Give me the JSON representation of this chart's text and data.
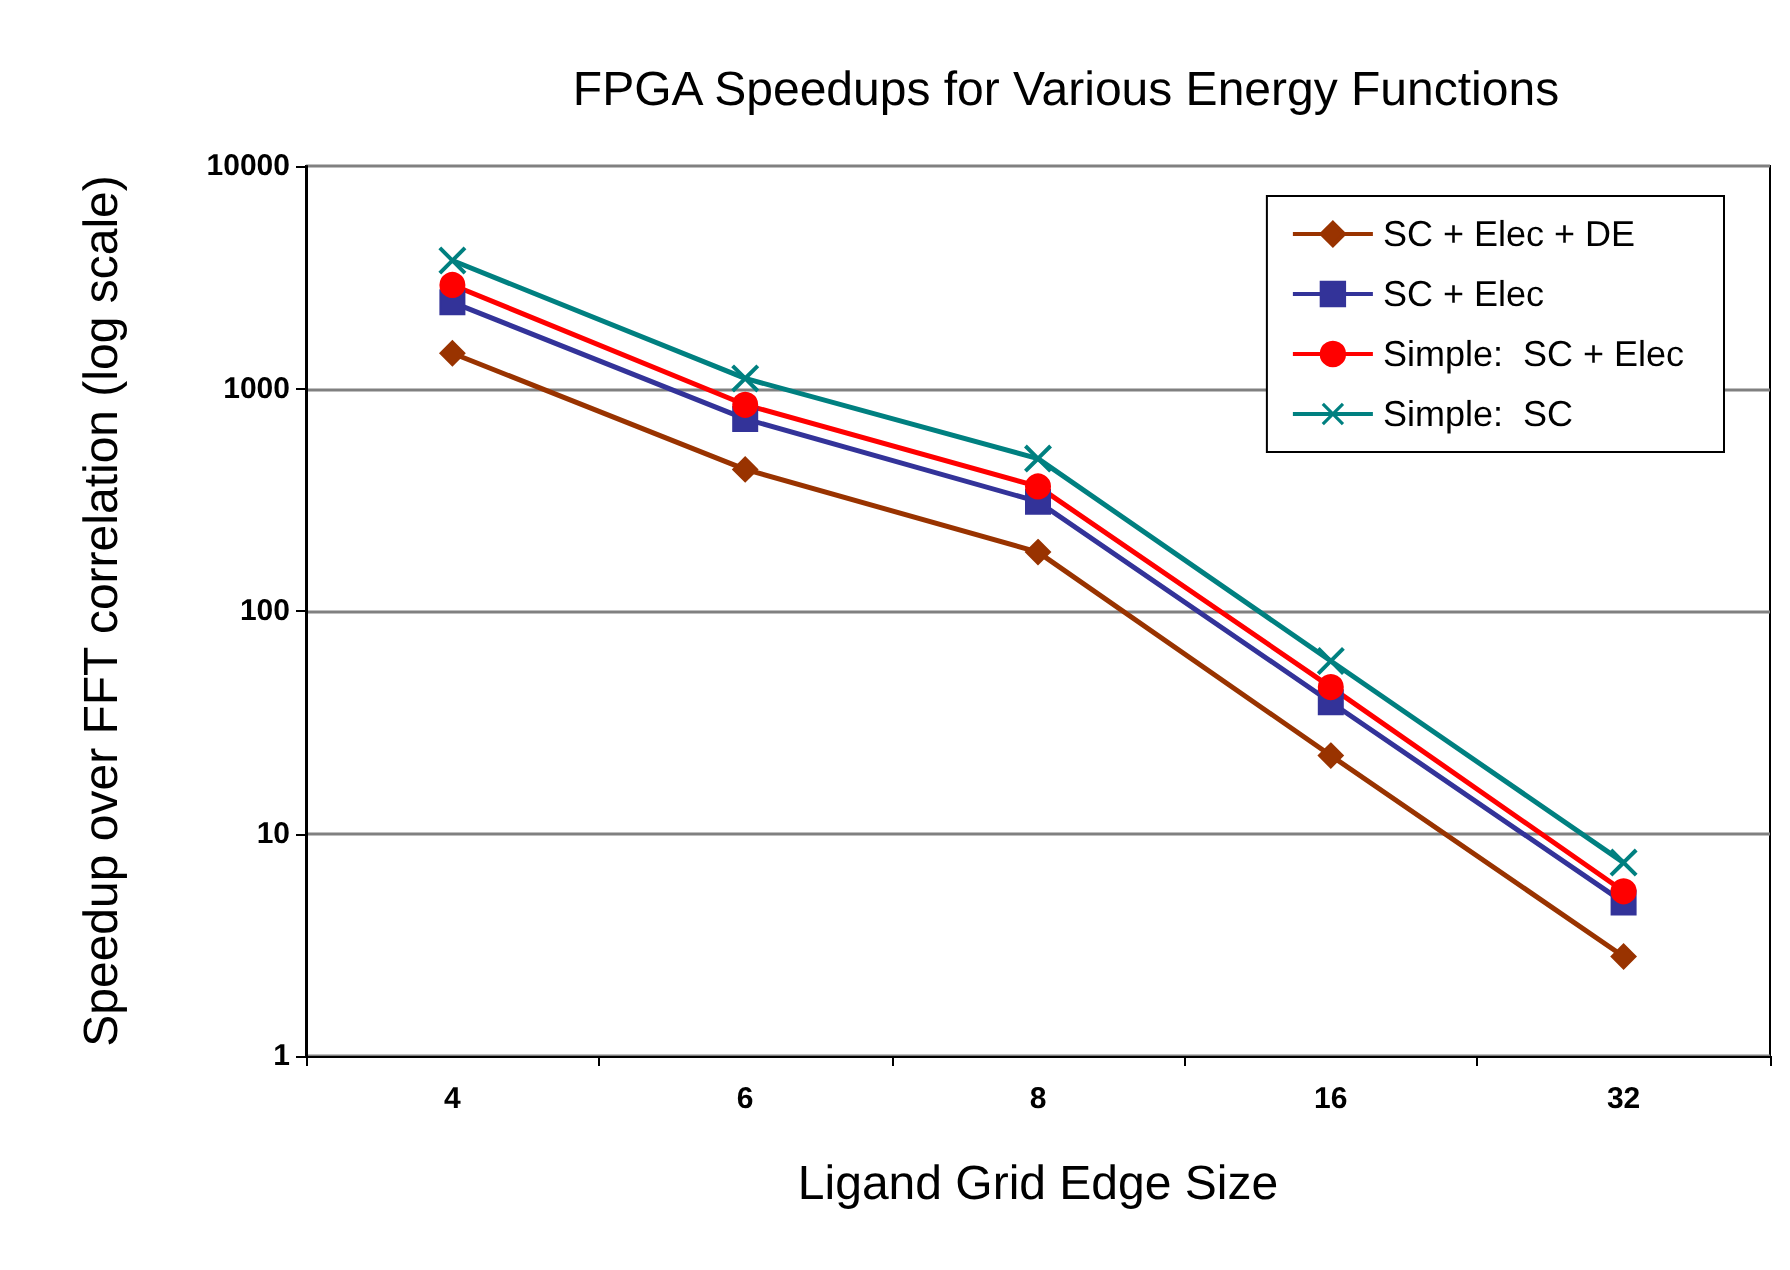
{
  "chart_data": {
    "type": "line",
    "title": "FPGA Speedups for Various Energy Functions",
    "xlabel": "Ligand Grid Edge Size",
    "ylabel": "Speedup over FFT correlation (log scale)",
    "categories": [
      "4",
      "6",
      "8",
      "16",
      "32"
    ],
    "series": [
      {
        "name": "SC + Elec + DE",
        "color": "#993300",
        "marker": "diamond",
        "values": [
          1440,
          433,
          184,
          22.4,
          2.8
        ]
      },
      {
        "name": "SC + Elec",
        "color": "#333399",
        "marker": "square",
        "values": [
          2440,
          730,
          310,
          38.9,
          4.9
        ]
      },
      {
        "name": "Simple:  SC + Elec",
        "color": "#ff0000",
        "marker": "circle",
        "values": [
          2920,
          845,
          363,
          45.5,
          5.5
        ]
      },
      {
        "name": "Simple:  SC",
        "color": "#008080",
        "marker": "cross",
        "values": [
          3760,
          1110,
          484,
          59.6,
          7.4
        ]
      }
    ],
    "log": "y",
    "ylim": [
      1,
      10000
    ],
    "yticks": [
      1,
      10,
      100,
      1000,
      10000
    ],
    "grid": "y",
    "legend": "top right"
  }
}
